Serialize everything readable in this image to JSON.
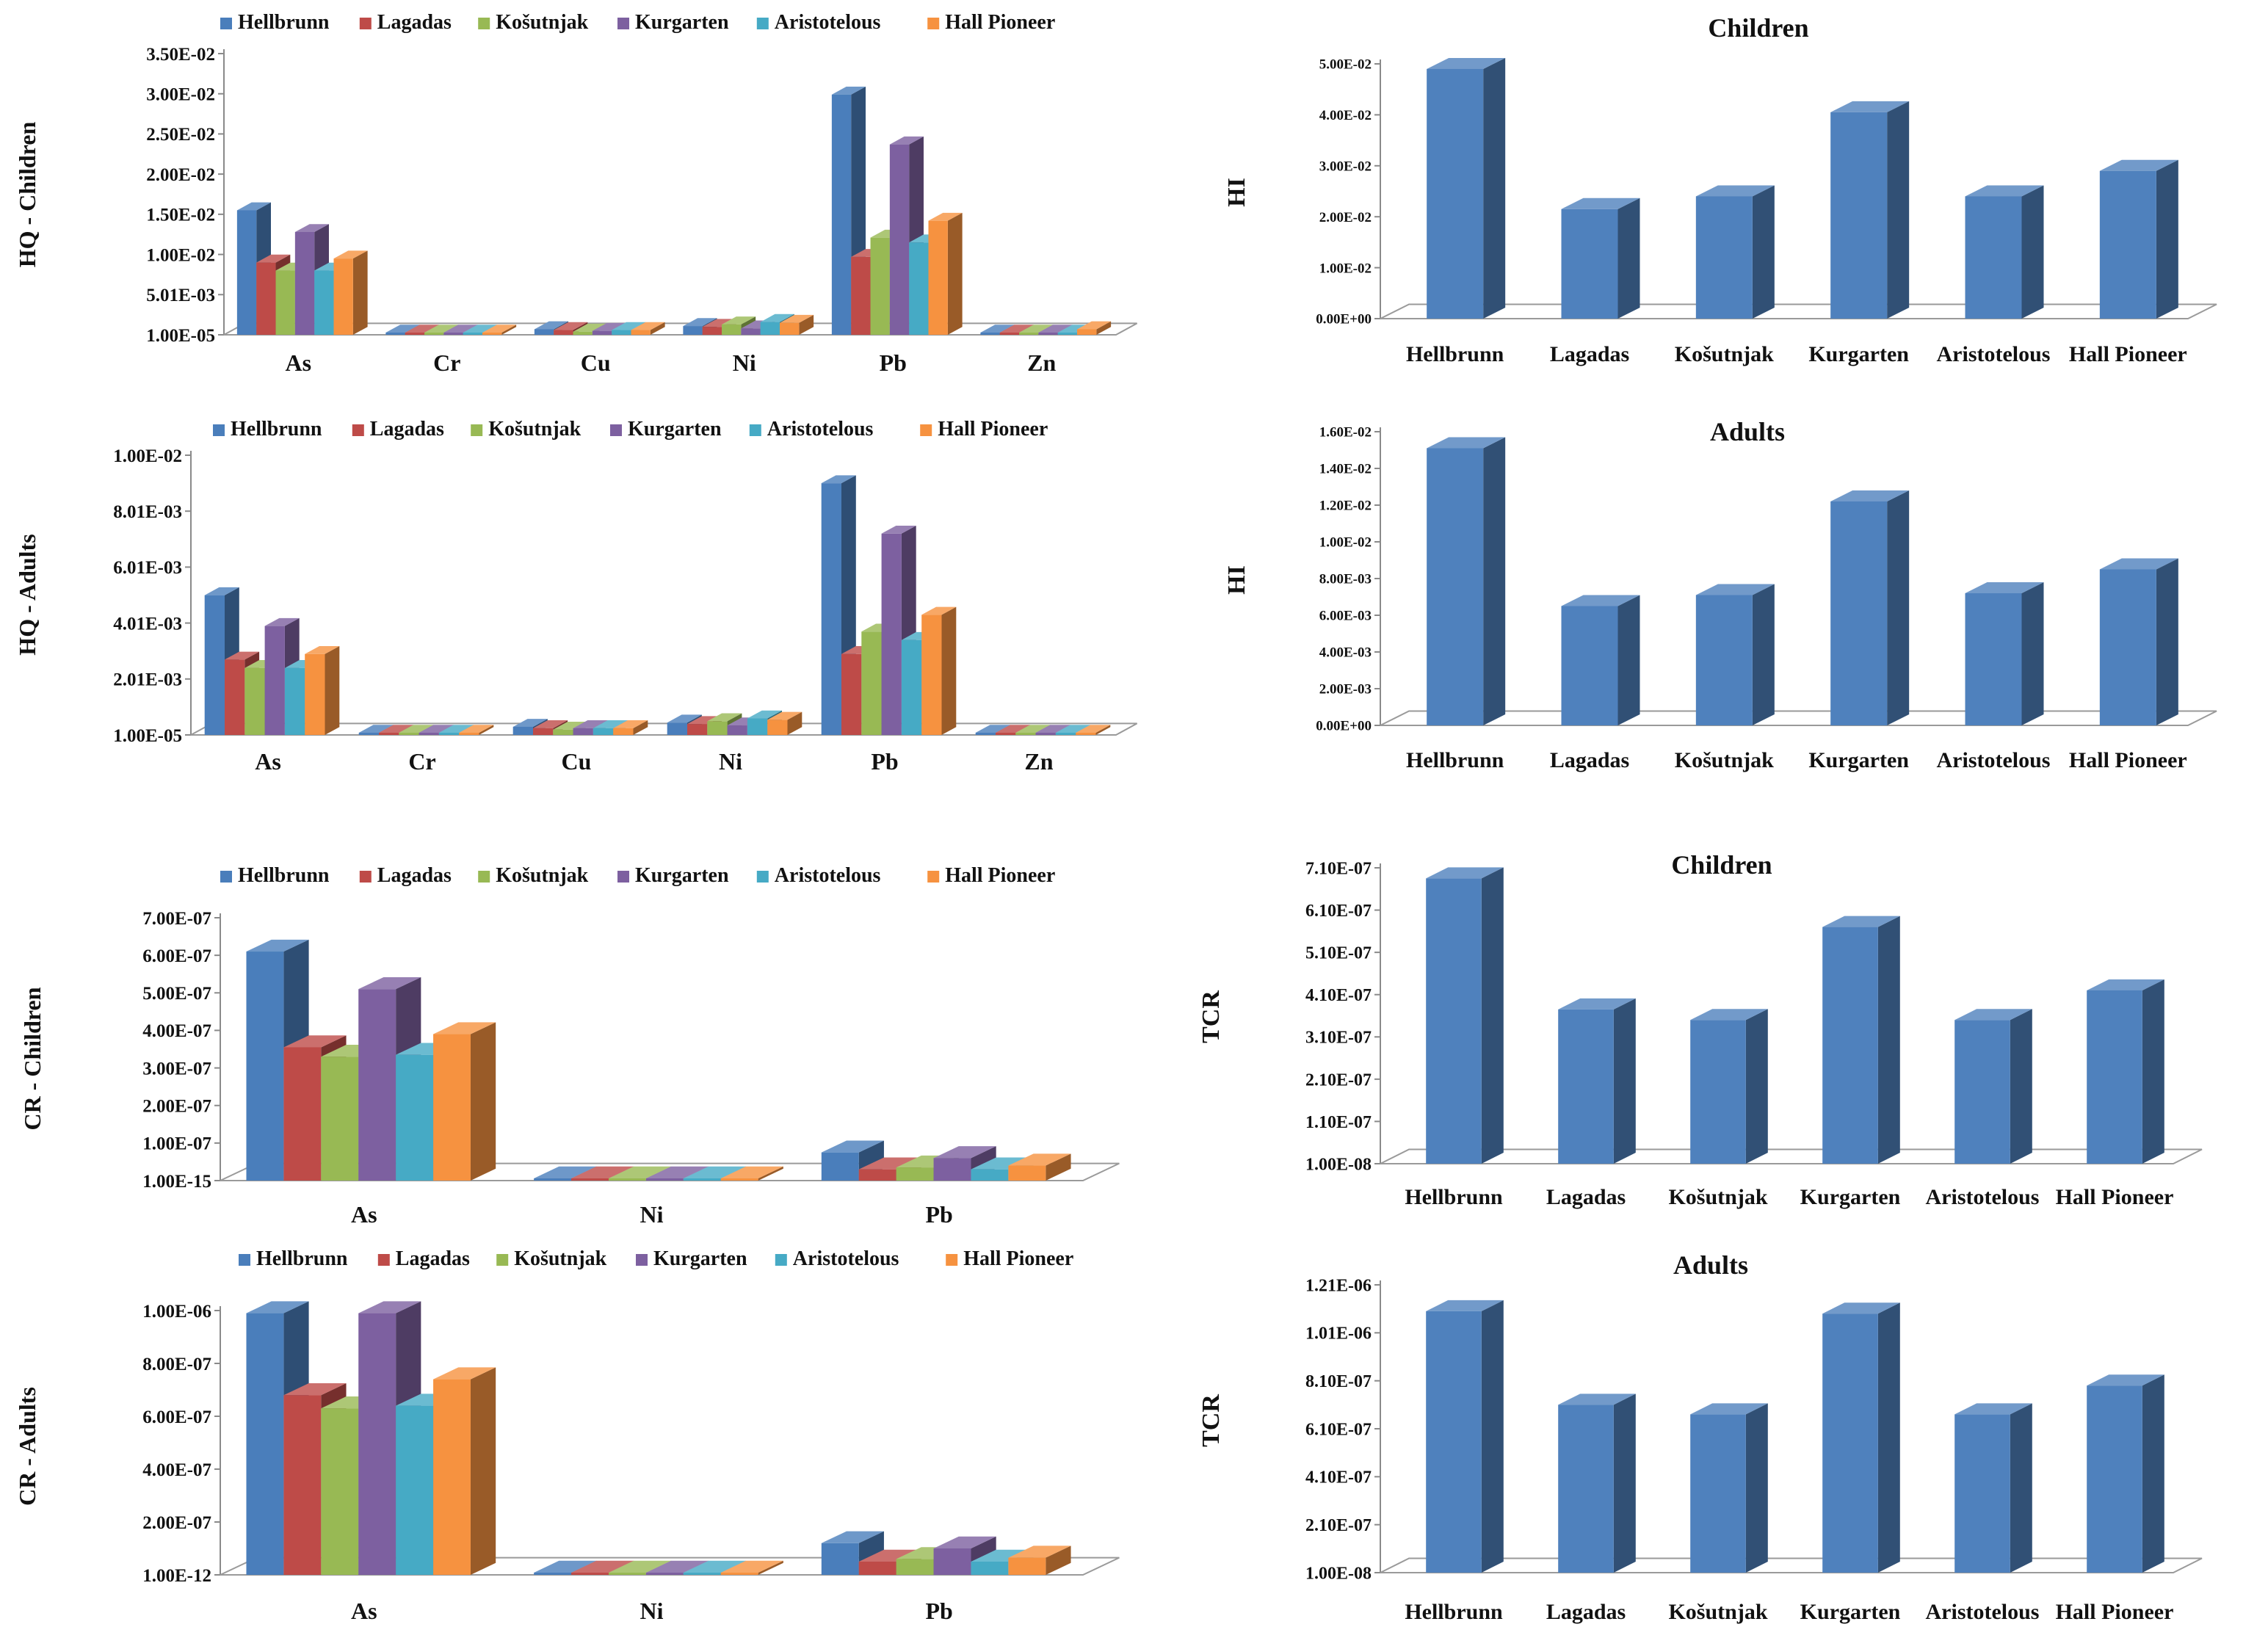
{
  "colors": {
    "Hellbrunn": "#4a7ebb",
    "Lagadas": "#be4b48",
    "Košutnjak": "#98b954",
    "Kurgarten": "#7d60a0",
    "Aristotelous": "#46aac5",
    "Hall Pioneer": "#f69240",
    "single": "#4f81bd"
  },
  "chart_data": [
    {
      "id": "hq-children",
      "type": "bar",
      "ylabel": "HQ - Children",
      "title": "",
      "legend": [
        "Hellbrunn",
        "Lagadas",
        "Košutnjak",
        "Kurgarten",
        "Aristotelous",
        "Hall Pioneer"
      ],
      "categories": [
        "As",
        "Cr",
        "Cu",
        "Ni",
        "Pb",
        "Zn"
      ],
      "ylim": [
        1e-05,
        0.035
      ],
      "yticks": [
        "1.00E-05",
        "5.01E-03",
        "1.00E-02",
        "1.50E-02",
        "2.00E-02",
        "2.50E-02",
        "3.00E-02",
        "3.50E-02"
      ],
      "series": [
        {
          "name": "Hellbrunn",
          "values": [
            0.0155,
            5e-05,
            0.0007,
            0.0011,
            0.0299,
            0.0001
          ]
        },
        {
          "name": "Lagadas",
          "values": [
            0.009,
            5e-05,
            0.0006,
            0.001,
            0.0097,
            0.0001
          ]
        },
        {
          "name": "Košutnjak",
          "values": [
            0.008,
            5e-05,
            0.0004,
            0.0013,
            0.0121,
            0.0001
          ]
        },
        {
          "name": "Kurgarten",
          "values": [
            0.0128,
            5e-05,
            0.0005,
            0.0008,
            0.0237,
            0.0001
          ]
        },
        {
          "name": "Aristotelous",
          "values": [
            0.008,
            5e-05,
            0.0006,
            0.0016,
            0.0115,
            0.0001
          ]
        },
        {
          "name": "Hall Pioneer",
          "values": [
            0.0095,
            5e-05,
            0.0006,
            0.0015,
            0.0142,
            0.0007
          ]
        }
      ]
    },
    {
      "id": "hq-adults",
      "type": "bar",
      "ylabel": "HQ - Adults",
      "title": "",
      "legend": [
        "Hellbrunn",
        "Lagadas",
        "Košutnjak",
        "Kurgarten",
        "Aristotelous",
        "Hall Pioneer"
      ],
      "categories": [
        "As",
        "Cr",
        "Cu",
        "Ni",
        "Pb",
        "Zn"
      ],
      "ylim": [
        1e-05,
        0.01
      ],
      "yticks": [
        "1.00E-05",
        "2.01E-03",
        "4.01E-03",
        "6.01E-03",
        "8.01E-03",
        "1.00E-02"
      ],
      "series": [
        {
          "name": "Hellbrunn",
          "values": [
            0.005,
            2e-05,
            0.0003,
            0.00045,
            0.009,
            3e-05
          ]
        },
        {
          "name": "Lagadas",
          "values": [
            0.0027,
            2e-05,
            0.00025,
            0.0004,
            0.0029,
            3e-05
          ]
        },
        {
          "name": "Košutnjak",
          "values": [
            0.0024,
            2e-05,
            0.0002,
            0.0005,
            0.0037,
            3e-05
          ]
        },
        {
          "name": "Kurgarten",
          "values": [
            0.0039,
            2e-05,
            0.00025,
            0.00035,
            0.0072,
            3e-05
          ]
        },
        {
          "name": "Aristotelous",
          "values": [
            0.0024,
            2e-05,
            0.00025,
            0.0006,
            0.0034,
            3e-05
          ]
        },
        {
          "name": "Hall Pioneer",
          "values": [
            0.0029,
            2e-05,
            0.00025,
            0.00055,
            0.0043,
            3e-05
          ]
        }
      ]
    },
    {
      "id": "cr-children",
      "type": "bar",
      "ylabel": "CR - Children",
      "title": "",
      "legend": [
        "Hellbrunn",
        "Lagadas",
        "Košutnjak",
        "Kurgarten",
        "Aristotelous",
        "Hall Pioneer"
      ],
      "categories": [
        "As",
        "Ni",
        "Pb"
      ],
      "ylim": [
        1e-15,
        7e-07
      ],
      "yticks": [
        "1.00E-15",
        "1.00E-07",
        "2.00E-07",
        "3.00E-07",
        "4.00E-07",
        "5.00E-07",
        "6.00E-07",
        "7.00E-07"
      ],
      "series": [
        {
          "name": "Hellbrunn",
          "values": [
            6.1e-07,
            2e-09,
            7.5e-08
          ]
        },
        {
          "name": "Lagadas",
          "values": [
            3.55e-07,
            2e-09,
            3e-08
          ]
        },
        {
          "name": "Košutnjak",
          "values": [
            3.3e-07,
            2e-09,
            3.5e-08
          ]
        },
        {
          "name": "Kurgarten",
          "values": [
            5.1e-07,
            2e-09,
            6e-08
          ]
        },
        {
          "name": "Aristotelous",
          "values": [
            3.35e-07,
            2e-09,
            3e-08
          ]
        },
        {
          "name": "Hall Pioneer",
          "values": [
            3.9e-07,
            2e-09,
            4e-08
          ]
        }
      ]
    },
    {
      "id": "cr-adults",
      "type": "bar",
      "ylabel": "CR - Adults",
      "title": "",
      "legend": [
        "Hellbrunn",
        "Lagadas",
        "Košutnjak",
        "Kurgarten",
        "Aristotelous",
        "Hall Pioneer"
      ],
      "categories": [
        "As",
        "Ni",
        "Pb"
      ],
      "ylim": [
        1e-12,
        1e-06
      ],
      "yticks": [
        "1.00E-12",
        "2.00E-07",
        "4.00E-07",
        "6.00E-07",
        "8.00E-07",
        "1.00E-06"
      ],
      "series": [
        {
          "name": "Hellbrunn",
          "values": [
            9.9e-07,
            3e-09,
            1.2e-07
          ]
        },
        {
          "name": "Lagadas",
          "values": [
            6.8e-07,
            3e-09,
            5e-08
          ]
        },
        {
          "name": "Košutnjak",
          "values": [
            6.3e-07,
            3e-09,
            6e-08
          ]
        },
        {
          "name": "Kurgarten",
          "values": [
            9.9e-07,
            3e-09,
            1e-07
          ]
        },
        {
          "name": "Aristotelous",
          "values": [
            6.4e-07,
            3e-09,
            5e-08
          ]
        },
        {
          "name": "Hall Pioneer",
          "values": [
            7.4e-07,
            3e-09,
            6.5e-08
          ]
        }
      ]
    },
    {
      "id": "hi-children",
      "type": "bar",
      "ylabel": "HI",
      "title": "Children",
      "categories": [
        "Hellbrunn",
        "Lagadas",
        "Košutnjak",
        "Kurgarten",
        "Aristotelous",
        "Hall Pioneer"
      ],
      "ylim": [
        0,
        0.05
      ],
      "yticks": [
        "0.00E+00",
        "1.00E-02",
        "2.00E-02",
        "3.00E-02",
        "4.00E-02",
        "5.00E-02"
      ],
      "values": [
        0.049,
        0.0215,
        0.024,
        0.0405,
        0.024,
        0.029
      ]
    },
    {
      "id": "hi-adults",
      "type": "bar",
      "ylabel": "HI",
      "title": "Adults",
      "categories": [
        "Hellbrunn",
        "Lagadas",
        "Košutnjak",
        "Kurgarten",
        "Aristotelous",
        "Hall Pioneer"
      ],
      "ylim": [
        0,
        0.016
      ],
      "yticks": [
        "0.00E+00",
        "2.00E-03",
        "4.00E-03",
        "6.00E-03",
        "8.00E-03",
        "1.00E-02",
        "1.20E-02",
        "1.40E-02",
        "1.60E-02"
      ],
      "values": [
        0.0151,
        0.0065,
        0.0071,
        0.0122,
        0.0072,
        0.0085
      ]
    },
    {
      "id": "tcr-children",
      "type": "bar",
      "ylabel": "TCR",
      "title": "Children",
      "categories": [
        "Hellbrunn",
        "Lagadas",
        "Košutnjak",
        "Kurgarten",
        "Aristotelous",
        "Hall Pioneer"
      ],
      "ylim": [
        1e-08,
        7.1e-07
      ],
      "yticks": [
        "1.00E-08",
        "1.10E-07",
        "2.10E-07",
        "3.10E-07",
        "4.10E-07",
        "5.10E-07",
        "6.10E-07",
        "7.10E-07"
      ],
      "values": [
        6.85e-07,
        3.75e-07,
        3.5e-07,
        5.7e-07,
        3.5e-07,
        4.2e-07
      ]
    },
    {
      "id": "tcr-adults",
      "type": "bar",
      "ylabel": "TCR",
      "title": "Adults",
      "categories": [
        "Hellbrunn",
        "Lagadas",
        "Košutnjak",
        "Kurgarten",
        "Aristotelous",
        "Hall Pioneer"
      ],
      "ylim": [
        1e-08,
        1.21e-06
      ],
      "yticks": [
        "1.00E-08",
        "2.10E-07",
        "4.10E-07",
        "6.10E-07",
        "8.10E-07",
        "1.01E-06",
        "1.21E-06"
      ],
      "values": [
        1.1e-06,
        7.1e-07,
        6.7e-07,
        1.09e-06,
        6.7e-07,
        7.9e-07
      ]
    }
  ]
}
